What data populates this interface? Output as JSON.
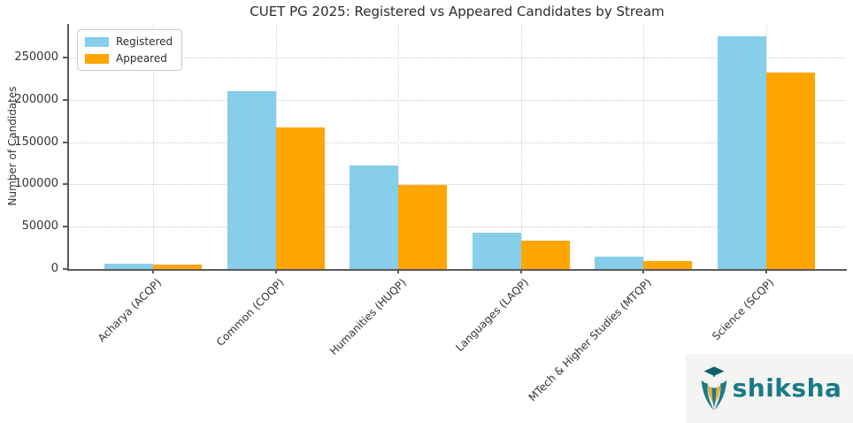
{
  "title": "CUET PG 2025: Registered vs Appeared Candidates by Stream",
  "ylabel": "Number of Candidates",
  "legend": {
    "items": [
      {
        "label": "Registered",
        "color": "#87CEEB"
      },
      {
        "label": "Appeared",
        "color": "#FFA500"
      }
    ]
  },
  "chart_data": {
    "type": "bar",
    "title": "CUET PG 2025: Registered vs Appeared Candidates by Stream",
    "xlabel": "",
    "ylabel": "Number of Candidates",
    "categories": [
      "Acharya (ACQP)",
      "Common (COQP)",
      "Humanities (HUQP)",
      "Languages (LAQP)",
      "MTech & Higher Studies (MTQP)",
      "Science (SCQP)"
    ],
    "series": [
      {
        "name": "Registered",
        "color": "#87CEEB",
        "values": [
          6500,
          210000,
          123000,
          43000,
          15000,
          275000
        ]
      },
      {
        "name": "Appeared",
        "color": "#FFA500",
        "values": [
          5000,
          168000,
          99000,
          33000,
          9000,
          232000
        ]
      }
    ],
    "ylim": [
      0,
      290000
    ],
    "yticks": [
      0,
      50000,
      100000,
      150000,
      200000,
      250000
    ],
    "grid": "dotted, both axes",
    "legend_position": "upper left"
  },
  "watermark": {
    "brand": "shiksha",
    "teal": "#1a7a87",
    "dark_teal": "#10616d",
    "gold": "#e8ab45",
    "background": "#f4f4f3"
  }
}
